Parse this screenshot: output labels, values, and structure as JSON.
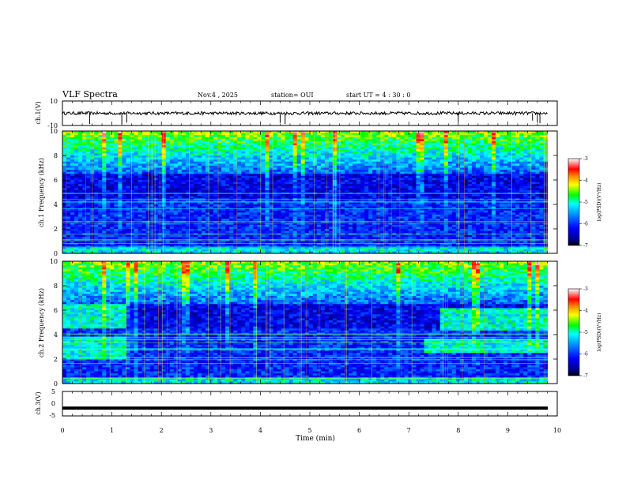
{
  "header": {
    "title": "VLF Spectra",
    "date": "Nov.4 , 2025",
    "station": "station= OUI",
    "start_ut": "start UT = 4 : 30 : 0"
  },
  "colors": {
    "background": "#ffffff",
    "axis": "#000000",
    "colormap": [
      "#ffffff",
      "#ff0000",
      "#ff8800",
      "#ffff00",
      "#00ff00",
      "#00ffff",
      "#0088ff",
      "#0000ff",
      "#000080",
      "#000000"
    ]
  },
  "chart_data": [
    {
      "type": "line",
      "name": "ch1-waveform",
      "ylabel": "ch.1(V)",
      "xlim": [
        0,
        10
      ],
      "ylim": [
        -10,
        10
      ],
      "yticks": [
        "10",
        "-10"
      ],
      "baseline": 0,
      "spike_times_min": [
        0.55,
        1.2,
        1.3,
        4.4,
        4.5,
        8.0,
        9.5,
        9.6,
        9.65
      ]
    },
    {
      "type": "heatmap",
      "name": "ch1-spectrogram",
      "ylabel": "ch.1 Frequency (kHz)",
      "xlim": [
        0,
        10
      ],
      "ylim": [
        0,
        10
      ],
      "yticks": [
        "0",
        "2",
        "4",
        "6",
        "8",
        "10"
      ],
      "colorbar": {
        "label": "log(PSD)(V²/Hz)",
        "range": [
          -7,
          -3
        ],
        "ticks": [
          "-3",
          "-4",
          "-5",
          "-6",
          "-7"
        ]
      }
    },
    {
      "type": "heatmap",
      "name": "ch2-spectrogram",
      "ylabel": "ch.2 Frequency (kHz)",
      "xlim": [
        0,
        10
      ],
      "ylim": [
        0,
        10
      ],
      "yticks": [
        "0",
        "2",
        "4",
        "6",
        "8",
        "10"
      ],
      "bands": [
        {
          "t0": 0,
          "t1": 1.3,
          "f0": 2.0,
          "f1": 3.8
        },
        {
          "t0": 0,
          "t1": 1.3,
          "f0": 4.5,
          "f1": 6.5
        },
        {
          "t0": 7.3,
          "t1": 9.8,
          "f0": 2.5,
          "f1": 3.7
        },
        {
          "t0": 7.6,
          "t1": 9.8,
          "f0": 4.3,
          "f1": 6.2
        }
      ],
      "colorbar": {
        "label": "log(PSD)(V²/Hz)",
        "range": [
          -7,
          -3
        ],
        "ticks": [
          "-3",
          "-4",
          "-5",
          "-6",
          "-7"
        ]
      }
    },
    {
      "type": "line",
      "name": "ch3-waveform",
      "ylabel": "ch.3(V)",
      "xlim": [
        0,
        10
      ],
      "ylim": [
        -5,
        5
      ],
      "yticks": [
        "5",
        "0",
        "-5"
      ],
      "baseline": -1.8
    }
  ],
  "xaxis": {
    "label": "Time (min)",
    "ticks": [
      "0",
      "1",
      "2",
      "3",
      "4",
      "5",
      "6",
      "7",
      "8",
      "9",
      "10"
    ]
  }
}
